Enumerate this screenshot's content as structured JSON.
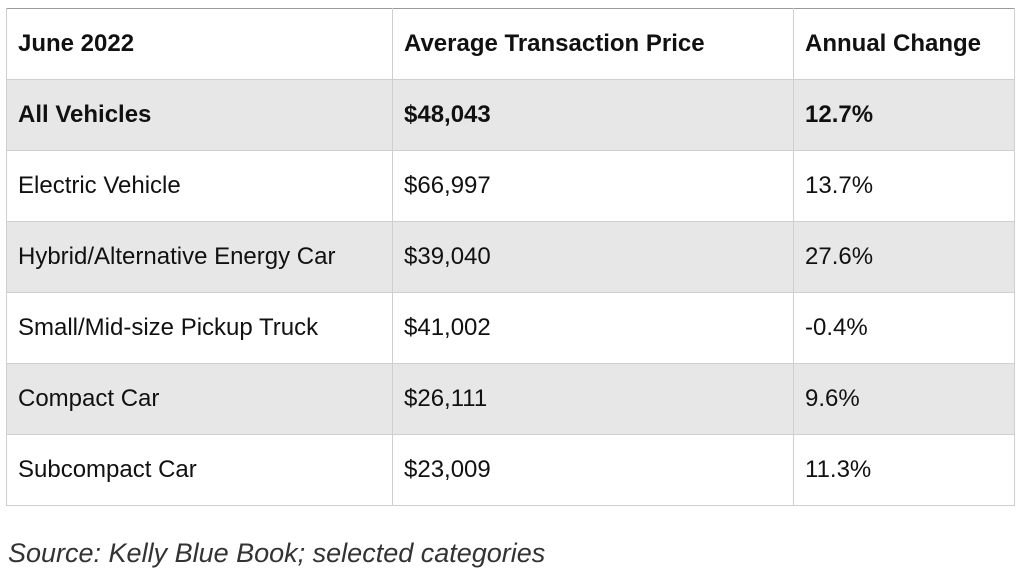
{
  "chart_data": {
    "type": "table",
    "columns": [
      "June 2022",
      "Average Transaction Price",
      "Annual Change"
    ],
    "rows": [
      {
        "category": "All Vehicles",
        "price": "$48,043",
        "change": "12.7%"
      },
      {
        "category": "Electric Vehicle",
        "price": "$66,997",
        "change": "13.7%"
      },
      {
        "category": "Hybrid/Alternative Energy Car",
        "price": "$39,040",
        "change": "27.6%"
      },
      {
        "category": "Small/Mid-size Pickup Truck",
        "price": "$41,002",
        "change": "-0.4%"
      },
      {
        "category": "Compact Car",
        "price": "$26,111",
        "change": "9.6%"
      },
      {
        "category": "Subcompact Car",
        "price": "$23,009",
        "change": "11.3%"
      }
    ],
    "source": "Source: Kelly Blue Book; selected categories"
  },
  "style": {
    "shaded_row_color": "#e7e7e7",
    "border_color": "#cfcfcf",
    "bold_first_data_row": true
  }
}
